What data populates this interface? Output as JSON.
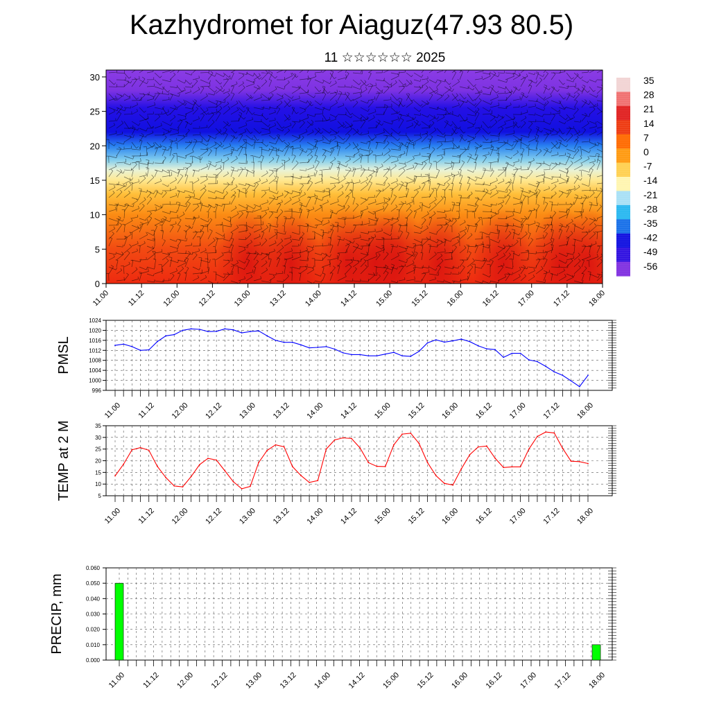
{
  "header": {
    "title": "Kazhydromet for Aiaguz(47.93 80.5)",
    "subtitle": "11 ☆☆☆☆☆☆ 2025"
  },
  "time_ticks": [
    "11.00",
    "11.12",
    "12.00",
    "12.12",
    "13.00",
    "13.12",
    "14.00",
    "14.12",
    "15.00",
    "15.12",
    "16.00",
    "16.12",
    "17.00",
    "17.12",
    "18.00"
  ],
  "chart_data": [
    {
      "type": "heatmap",
      "name": "cross-section",
      "x": [
        "11.00",
        "11.12",
        "12.00",
        "12.12",
        "13.00",
        "13.12",
        "14.00",
        "14.12",
        "15.00",
        "15.12",
        "16.00",
        "16.12",
        "17.00",
        "17.12",
        "18.00"
      ],
      "ylim": [
        0,
        31
      ],
      "yticks": [
        0,
        5,
        10,
        15,
        20,
        25,
        30
      ],
      "colorbar": {
        "labels": [
          "35",
          "28",
          "21",
          "14",
          "7",
          "0",
          "-7",
          "-14",
          "-21",
          "-28",
          "-35",
          "-42",
          "-49",
          "-56"
        ],
        "colors": [
          "#f2d4d4",
          "#f07070",
          "#e02020",
          "#ee3a10",
          "#ff6a00",
          "#ff9a10",
          "#ffd050",
          "#fff5b0",
          "#a8e0f5",
          "#28b8f0",
          "#1870e8",
          "#1010e0",
          "#3010e0",
          "#8030e0"
        ]
      },
      "layers": [
        {
          "height": 0,
          "color": "#ee2a10"
        },
        {
          "height": 5,
          "color": "#f24a12"
        },
        {
          "height": 10,
          "color": "#fb8c14"
        },
        {
          "height": 13,
          "color": "#ffbf3a"
        },
        {
          "height": 15,
          "color": "#ffe890"
        },
        {
          "height": 16.5,
          "color": "#e8f3d8"
        },
        {
          "height": 18,
          "color": "#80ccee"
        },
        {
          "height": 20,
          "color": "#2880f0"
        },
        {
          "height": 22,
          "color": "#1010e0"
        },
        {
          "height": 25.5,
          "color": "#2510e5"
        },
        {
          "height": 28,
          "color": "#7d32e2"
        },
        {
          "height": 31,
          "color": "#8b3ce5"
        }
      ],
      "warm_spots": [
        13.0,
        13.6,
        14.4,
        14.8,
        15.1,
        15.7,
        16.6,
        17.4,
        17.8
      ]
    },
    {
      "type": "line",
      "name": "pressure",
      "ylabel": "PMSL",
      "ylim": [
        996,
        1024
      ],
      "yticks": [
        996,
        1000,
        1004,
        1008,
        1012,
        1016,
        1020,
        1024
      ],
      "color": "#0000ff",
      "x": [
        11.0,
        11.125,
        11.25,
        11.375,
        11.5,
        11.625,
        11.75,
        11.875,
        12.0,
        12.125,
        12.25,
        12.375,
        12.5,
        12.625,
        12.75,
        12.875,
        13.0,
        13.125,
        13.25,
        13.375,
        13.5,
        13.625,
        13.75,
        13.875,
        14.0,
        14.125,
        14.25,
        14.375,
        14.5,
        14.625,
        14.75,
        14.875,
        15.0,
        15.125,
        15.25,
        15.375,
        15.5,
        15.625,
        15.75,
        15.875,
        16.0,
        16.125,
        16.25,
        16.375,
        16.5,
        16.625,
        16.75,
        16.875,
        17.0,
        17.125,
        17.25,
        17.375,
        17.5,
        17.625,
        17.75,
        17.875,
        18.0
      ],
      "values": [
        1014.0,
        1014.5,
        1013.5,
        1012.0,
        1012.2,
        1015.5,
        1017.8,
        1018.3,
        1020.0,
        1020.6,
        1020.4,
        1019.5,
        1019.6,
        1020.6,
        1020.2,
        1019.0,
        1019.5,
        1019.8,
        1017.8,
        1016.0,
        1015.2,
        1015.2,
        1014.2,
        1013.0,
        1013.2,
        1013.5,
        1012.5,
        1011.0,
        1010.3,
        1010.3,
        1009.8,
        1009.8,
        1010.5,
        1011.2,
        1009.8,
        1009.6,
        1011.6,
        1015.0,
        1016.2,
        1015.3,
        1015.8,
        1016.5,
        1015.5,
        1013.8,
        1012.6,
        1012.3,
        1009.2,
        1010.8,
        1010.8,
        1008.2,
        1007.5,
        1005.6,
        1003.4,
        1002.0,
        999.8,
        997.5,
        1002.0
      ]
    },
    {
      "type": "line",
      "name": "temperature",
      "ylabel": "TEMP at 2 M",
      "ylim": [
        5,
        35
      ],
      "yticks": [
        5,
        10,
        15,
        20,
        25,
        30,
        35
      ],
      "color": "#ff0000",
      "x": [
        11.0,
        11.125,
        11.25,
        11.375,
        11.5,
        11.625,
        11.75,
        11.875,
        12.0,
        12.125,
        12.25,
        12.375,
        12.5,
        12.625,
        12.75,
        12.875,
        13.0,
        13.125,
        13.25,
        13.375,
        13.5,
        13.625,
        13.75,
        13.875,
        14.0,
        14.125,
        14.25,
        14.375,
        14.5,
        14.625,
        14.75,
        14.875,
        15.0,
        15.125,
        15.25,
        15.375,
        15.5,
        15.625,
        15.75,
        15.875,
        16.0,
        16.125,
        16.25,
        16.375,
        16.5,
        16.625,
        16.75,
        16.875,
        17.0,
        17.125,
        17.25,
        17.375,
        17.5,
        17.625,
        17.75,
        17.875,
        18.0
      ],
      "values": [
        13.5,
        18.5,
        24.7,
        25.6,
        24.5,
        17.6,
        12.8,
        9.2,
        8.8,
        13.2,
        18.3,
        21.0,
        20.3,
        15.7,
        11.0,
        8.0,
        9.0,
        19.2,
        24.4,
        26.8,
        26.0,
        17.5,
        13.7,
        10.7,
        11.5,
        25.0,
        28.9,
        29.8,
        29.5,
        25.5,
        19.2,
        17.6,
        17.5,
        26.8,
        31.4,
        31.8,
        27.4,
        19.2,
        13.6,
        10.3,
        9.6,
        16.5,
        22.6,
        25.9,
        26.3,
        21.1,
        17.1,
        17.4,
        17.4,
        25.0,
        30.4,
        32.3,
        31.9,
        25.3,
        19.8,
        19.6,
        18.8
      ]
    },
    {
      "type": "bar",
      "name": "precipitation",
      "ylabel": "PRECIP, mm",
      "ylim": [
        0,
        0.06
      ],
      "yticks": [
        "0.000",
        "0.010",
        "0.020",
        "0.030",
        "0.040",
        "0.050",
        "0.060"
      ],
      "color": "#00ff00",
      "bars": [
        {
          "x": 11.0,
          "value": 0.05
        },
        {
          "x": 17.95,
          "value": 0.01
        }
      ]
    }
  ]
}
